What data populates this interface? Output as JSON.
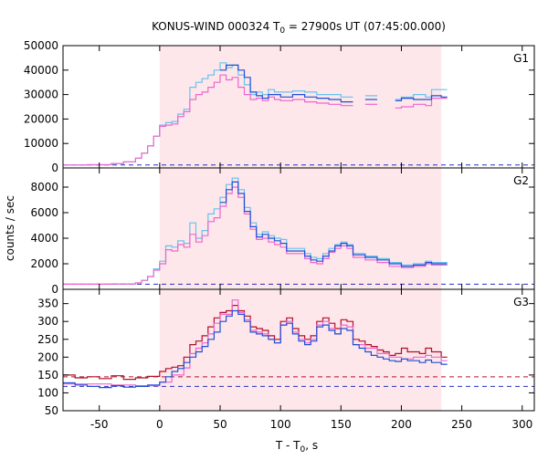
{
  "chart_data": {
    "type": "line",
    "title": "KONUS-WIND 000324 T",
    "title_sub": "0",
    "title_rest": " = 27900s UT (07:45:00.000)",
    "xlabel": "T - T",
    "xlabel_sub": "0",
    "xlabel_rest": ", s",
    "ylabel": "counts / sec",
    "xlim": [
      -80,
      310
    ],
    "xticks": [
      -50,
      0,
      50,
      100,
      150,
      200,
      250,
      300
    ],
    "shaded_interval": [
      0,
      233
    ],
    "colors": {
      "shade": "#fde7ea",
      "light_blue": "#66c2ee",
      "pink": "#ee66cc",
      "blue": "#1f4fd6",
      "dark_red": "#b0102a",
      "background_dashed_blue": "#2233bb",
      "background_dashed_red": "#b0102a"
    },
    "panels": [
      {
        "name": "G1",
        "ylim": [
          0,
          50000
        ],
        "yticks": [
          0,
          10000,
          20000,
          30000,
          40000,
          50000
        ],
        "background_levels": [
          {
            "color": "blue",
            "value": 1200
          }
        ],
        "gaps": [
          [
            160,
            170
          ],
          [
            180,
            195
          ]
        ],
        "series": [
          {
            "name": "light-blue",
            "color": "light_blue",
            "x": [
              -80,
              -60,
              -40,
              -30,
              -20,
              -15,
              -10,
              -5,
              0,
              5,
              10,
              15,
              20,
              25,
              30,
              35,
              40,
              45,
              50,
              55,
              60,
              65,
              70,
              75,
              80,
              85,
              90,
              95,
              100,
              110,
              120,
              130,
              140,
              150,
              160,
              170,
              180,
              195,
              200,
              210,
              220,
              225,
              233
            ],
            "values": [
              1200,
              1300,
              1800,
              2500,
              4000,
              6000,
              9000,
              13000,
              17500,
              18500,
              19000,
              22000,
              24000,
              33000,
              35000,
              36500,
              38000,
              40000,
              43000,
              41000,
              42000,
              38000,
              34000,
              30000,
              31000,
              30000,
              32000,
              31000,
              31000,
              31500,
              31000,
              30000,
              30000,
              29000,
              29000,
              29500,
              28000,
              28000,
              29000,
              30000,
              29000,
              32000,
              32000
            ]
          },
          {
            "name": "pink",
            "color": "pink",
            "x": [
              -80,
              -60,
              -40,
              -30,
              -20,
              -15,
              -10,
              -5,
              0,
              5,
              10,
              15,
              20,
              25,
              30,
              35,
              40,
              45,
              50,
              55,
              60,
              65,
              70,
              75,
              80,
              85,
              90,
              95,
              100,
              110,
              120,
              130,
              140,
              150,
              160,
              170,
              180,
              195,
              200,
              210,
              220,
              225,
              233
            ],
            "values": [
              1200,
              1300,
              1800,
              2500,
              4000,
              6000,
              9000,
              13000,
              17000,
              17500,
              18000,
              21000,
              23000,
              28000,
              30000,
              31000,
              33000,
              35000,
              38000,
              36000,
              37000,
              33000,
              30000,
              28000,
              28500,
              27500,
              29000,
              28000,
              27500,
              28000,
              27000,
              26500,
              26000,
              25500,
              25000,
              26000,
              24500,
              24500,
              25000,
              26000,
              25500,
              28500,
              28500
            ]
          },
          {
            "name": "blue",
            "color": "blue",
            "x": [
              50,
              55,
              60,
              65,
              70,
              75,
              80,
              85,
              90,
              95,
              100,
              110,
              120,
              130,
              140,
              150,
              160,
              170,
              180,
              195,
              200,
              210,
              220,
              225,
              233
            ],
            "values": [
              40000,
              42000,
              42000,
              40000,
              37000,
              31000,
              29500,
              28500,
              30000,
              30000,
              29000,
              30000,
              29000,
              28500,
              28000,
              27000,
              27500,
              28000,
              26500,
              27500,
              28500,
              28000,
              28000,
              29500,
              29000
            ]
          }
        ]
      },
      {
        "name": "G2",
        "ylim": [
          0,
          9500
        ],
        "yticks": [
          0,
          2000,
          4000,
          6000,
          8000
        ],
        "background_levels": [
          {
            "color": "blue",
            "value": 400
          }
        ],
        "gaps": [],
        "series": [
          {
            "name": "light-blue",
            "color": "light_blue",
            "x": [
              -80,
              -40,
              -20,
              -15,
              -10,
              -5,
              0,
              5,
              10,
              15,
              20,
              25,
              30,
              35,
              40,
              45,
              50,
              55,
              60,
              65,
              70,
              75,
              80,
              85,
              90,
              95,
              100,
              105,
              110,
              120,
              125,
              130,
              135,
              140,
              145,
              150,
              155,
              160,
              170,
              180,
              190,
              200,
              210,
              220,
              225,
              233
            ],
            "values": [
              400,
              420,
              500,
              700,
              1000,
              1600,
              2200,
              3400,
              3300,
              3800,
              3600,
              5200,
              4000,
              4600,
              5900,
              6300,
              7200,
              8200,
              8700,
              7800,
              6400,
              5200,
              4300,
              4500,
              4200,
              4000,
              3900,
              3200,
              3200,
              2800,
              2500,
              2400,
              2800,
              3200,
              3500,
              3700,
              3500,
              2800,
              2600,
              2400,
              2100,
              1900,
              2000,
              2200,
              2100,
              2100
            ]
          },
          {
            "name": "pink",
            "color": "pink",
            "x": [
              -80,
              -40,
              -20,
              -15,
              -10,
              -5,
              0,
              5,
              10,
              15,
              20,
              25,
              30,
              35,
              40,
              45,
              50,
              55,
              60,
              65,
              70,
              75,
              80,
              85,
              90,
              95,
              100,
              105,
              110,
              120,
              125,
              130,
              135,
              140,
              145,
              150,
              155,
              160,
              170,
              180,
              190,
              200,
              210,
              220,
              225,
              233
            ],
            "values": [
              400,
              420,
              500,
              700,
              1000,
              1500,
              2000,
              3100,
              3000,
              3500,
              3300,
              4300,
              3700,
              4200,
              5300,
              5600,
              6500,
              7500,
              8000,
              7200,
              5900,
              4700,
              3900,
              4000,
              3700,
              3500,
              3300,
              2800,
              2800,
              2400,
              2100,
              2000,
              2400,
              2900,
              3200,
              3400,
              3200,
              2500,
              2300,
              2100,
              1800,
              1700,
              1800,
              2000,
              1900,
              1900
            ]
          },
          {
            "name": "blue",
            "color": "blue",
            "x": [
              50,
              55,
              60,
              65,
              70,
              75,
              80,
              85,
              90,
              95,
              100,
              105,
              110,
              120,
              125,
              130,
              135,
              140,
              145,
              150,
              155,
              160,
              170,
              180,
              190,
              200,
              210,
              220,
              225,
              233
            ],
            "values": [
              6800,
              7800,
              8400,
              7500,
              6100,
              4900,
              4100,
              4300,
              4000,
              3800,
              3600,
              3000,
              3000,
              2600,
              2300,
              2200,
              2600,
              3000,
              3400,
              3600,
              3400,
              2700,
              2500,
              2300,
              2000,
              1800,
              1900,
              2100,
              2000,
              2000
            ]
          }
        ]
      },
      {
        "name": "G3",
        "ylim": [
          50,
          390
        ],
        "yticks": [
          50,
          100,
          150,
          200,
          250,
          300,
          350
        ],
        "background_levels": [
          {
            "color": "dark_red",
            "value": 145
          },
          {
            "color": "blue",
            "value": 118
          }
        ],
        "gaps": [],
        "series": [
          {
            "name": "dark-red",
            "color": "dark_red",
            "x": [
              -80,
              -70,
              -60,
              -50,
              -40,
              -30,
              -20,
              -10,
              0,
              5,
              10,
              15,
              20,
              25,
              30,
              35,
              40,
              45,
              50,
              55,
              60,
              65,
              70,
              75,
              80,
              85,
              90,
              95,
              100,
              105,
              110,
              115,
              120,
              125,
              130,
              135,
              140,
              145,
              150,
              155,
              160,
              165,
              170,
              175,
              180,
              185,
              190,
              195,
              200,
              205,
              210,
              215,
              220,
              225,
              233
            ],
            "values": [
              150,
              142,
              145,
              140,
              148,
              138,
              142,
              146,
              160,
              168,
              172,
              176,
              200,
              235,
              245,
              260,
              285,
              310,
              325,
              330,
              345,
              330,
              315,
              285,
              280,
              275,
              260,
              250,
              300,
              310,
              280,
              260,
              250,
              260,
              300,
              310,
              295,
              280,
              305,
              300,
              250,
              245,
              235,
              230,
              220,
              215,
              205,
              210,
              225,
              215,
              215,
              210,
              225,
              215,
              200
            ]
          },
          {
            "name": "pink",
            "color": "pink",
            "x": [
              -80,
              -60,
              -40,
              -20,
              0,
              10,
              20,
              25,
              30,
              35,
              40,
              45,
              50,
              55,
              60,
              65,
              70,
              75,
              80,
              85,
              90,
              95,
              100,
              105,
              110,
              115,
              120,
              125,
              130,
              135,
              140,
              145,
              150,
              155,
              160,
              170,
              180,
              190,
              200,
              210,
              220,
              225,
              233
            ],
            "values": [
              125,
              125,
              122,
              120,
              130,
              150,
              170,
              210,
              225,
              240,
              265,
              295,
              320,
              320,
              360,
              325,
              305,
              275,
              270,
              265,
              250,
              240,
              290,
              300,
              270,
              250,
              240,
              250,
              290,
              300,
              280,
              265,
              290,
              285,
              235,
              225,
              210,
              200,
              195,
              200,
              205,
              200,
              190
            ]
          },
          {
            "name": "blue",
            "color": "blue",
            "x": [
              -80,
              -70,
              -60,
              -50,
              -40,
              -30,
              -20,
              -10,
              0,
              5,
              10,
              15,
              20,
              25,
              30,
              35,
              40,
              45,
              50,
              55,
              60,
              65,
              70,
              75,
              80,
              85,
              90,
              95,
              100,
              105,
              110,
              115,
              120,
              125,
              130,
              135,
              140,
              145,
              150,
              155,
              160,
              165,
              170,
              175,
              180,
              185,
              190,
              195,
              200,
              205,
              210,
              215,
              220,
              225,
              233
            ],
            "values": [
              128,
              122,
              118,
              115,
              120,
              116,
              118,
              122,
              130,
              145,
              160,
              168,
              185,
              200,
              215,
              230,
              250,
              270,
              300,
              315,
              330,
              320,
              300,
              270,
              265,
              260,
              250,
              240,
              290,
              295,
              265,
              245,
              235,
              245,
              285,
              290,
              275,
              265,
              280,
              275,
              235,
              225,
              215,
              205,
              200,
              195,
              190,
              188,
              195,
              190,
              190,
              185,
              192,
              185,
              180
            ]
          }
        ]
      }
    ]
  }
}
